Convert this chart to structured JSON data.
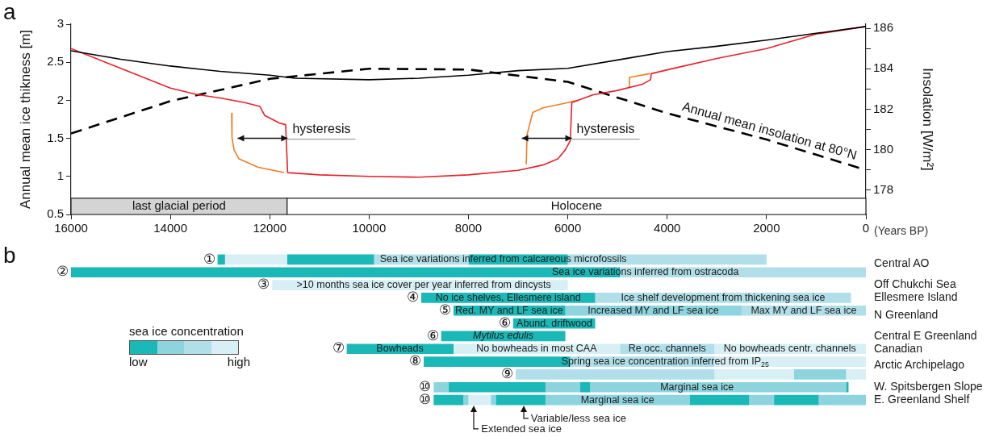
{
  "chart_data": [
    {
      "type": "line",
      "title": "a",
      "xlabel": "(Years BP)",
      "ylabel": "Annual mean ice thikness [m]",
      "y2label": "Insolation [W/m²]",
      "xlim": [
        16000,
        0
      ],
      "xticks": [
        16000,
        14000,
        12000,
        10000,
        8000,
        6000,
        4000,
        2000,
        0
      ],
      "ylim": [
        0.5,
        3
      ],
      "yticks": [
        0.5,
        1,
        1.5,
        2,
        2.5,
        3
      ],
      "y2lim": [
        176.8,
        186.2
      ],
      "y2ticks": [
        178,
        {
          "value": 179,
          "label": null
        },
        180,
        {
          "value": 181,
          "label": null
        },
        182,
        {
          "value": 183,
          "label": null
        },
        184,
        {
          "value": 185,
          "label": null
        },
        186
      ],
      "bands": [
        {
          "axis": "x",
          "from": 16000,
          "to": 11650,
          "label": "last glacial period",
          "color": "#d4d4d4"
        },
        {
          "axis": "x",
          "from": 11650,
          "to": 0,
          "label": "Holocene",
          "color": "#ffffff"
        }
      ],
      "annotations": [
        {
          "text": "hysteresis",
          "x": 11640,
          "y": 1.5
        },
        {
          "text": "hysteresis",
          "x": 5920,
          "y": 1.5
        }
      ],
      "series": [
        {
          "color": "#000000",
          "x": [
            16000,
            15000,
            14000,
            13000,
            12000,
            11500,
            10000,
            9000,
            8000,
            7000,
            6000,
            5000,
            4000,
            3000,
            2000,
            1000,
            0
          ],
          "values": [
            2.65,
            2.54,
            2.45,
            2.38,
            2.33,
            2.29,
            2.27,
            2.29,
            2.33,
            2.39,
            2.42,
            2.53,
            2.64,
            2.71,
            2.79,
            2.88,
            2.97
          ]
        },
        {
          "color": "#e8202a",
          "x": [
            16000,
            15000,
            14000,
            13500,
            13000,
            12500,
            12200,
            12100,
            11800,
            11680,
            11640,
            11000,
            10000,
            9000,
            8000,
            7000,
            6500,
            6200,
            6050,
            5950,
            5920,
            5500,
            5000,
            4500,
            4336,
            4320,
            4000,
            3000,
            2000,
            1000,
            0
          ],
          "values": [
            2.68,
            2.42,
            2.16,
            2.08,
            2.03,
            1.97,
            1.92,
            1.8,
            1.7,
            1.68,
            1.05,
            1.02,
            1.0,
            0.99,
            1.02,
            1.08,
            1.15,
            1.23,
            1.35,
            1.47,
            1.97,
            2.07,
            2.13,
            2.21,
            2.27,
            2.35,
            2.4,
            2.55,
            2.68,
            2.87,
            2.97
          ]
        },
        {
          "color": "#ee7d22",
          "x": [
            12766,
            12760,
            12718,
            12620,
            12230,
            11710,
            9000,
            6837,
            6820,
            6707,
            6500,
            6000,
            5800,
            5000,
            4775,
            4760,
            4350
          ],
          "values": [
            1.83,
            1.51,
            1.35,
            1.23,
            1.12,
            1.05,
            null,
            1.16,
            1.55,
            1.84,
            1.9,
            1.97,
            2.0,
            null,
            2.17,
            2.3,
            2.35
          ]
        },
        {
          "name": "Annual mean insolation at 80°N",
          "color": "#000000",
          "axis": "y2",
          "line_style": "dashed",
          "x": [
            16000,
            14000,
            12000,
            10000,
            8000,
            6000,
            4000,
            2000,
            0
          ],
          "values": [
            180.8,
            182.4,
            183.5,
            184.0,
            183.96,
            183.35,
            181.8,
            180.5,
            179.0
          ]
        }
      ]
    },
    {
      "type": "bar",
      "title": "b",
      "orientation": "horizontal",
      "tick_labels": "y",
      "xlim": [
        16000,
        0
      ],
      "legend_title": "sea ice concentration",
      "categories": [
        "①",
        "②",
        "③",
        "④",
        "⑤",
        "⑥",
        "⑥",
        "⑦",
        "⑧",
        "⑨",
        "⑩",
        "⑩"
      ],
      "annotations": [
        "low",
        "high",
        "Sea ice variations inferred from calcareous microfossils",
        "Sea ice variations inferred from ostracoda",
        ">10 months sea ice cover per year inferred from dincysts",
        "No ice shelves, Ellesmere island",
        "Ice shelf development from thickening sea ice",
        "Red. MY and LF sea ice",
        "Increased MY and LF sea ice",
        "Max MY and LF sea ice",
        "Abund. driftwood",
        "Mytilus edulis",
        "Bowheads",
        "No bowheads in most CAA",
        "Re occ. channels",
        "No bowheads centr. channels",
        "Spring sea ice concentration inferred from IP$_{25}$",
        "Marginal sea ice",
        "Marginal sea ice",
        "Central AO",
        "Off Chukchi Sea",
        "Ellesmere Island",
        "N Greenland",
        "Central E Greenland",
        "Canadian",
        "Arctic Archipelago",
        "W. Spitsbergen Slope",
        "E. Greenland Shelf",
        {
          "text": "Extended sea ice",
          "x": 7890,
          "y": "⑩"
        },
        {
          "text": "Variable/less sea ice",
          "x": 6890,
          "y": "⑩"
        }
      ],
      "series": [
        {
          "base": [
            12900,
            4950,
            6000,
            5450,
            6050,
            5450,
            6050,
            8300,
            5950,
            3050,
            8400,
            8100
          ],
          "values": [
            150,
            11050,
            5950,
            3500,
            2250,
            1650,
            2500,
            2150,
            2950,
            4000,
            300,
            600
          ],
          "colors": [
            "#1bb8b8",
            "#1bb8b8",
            "#d7eff5",
            "#1bb8b8",
            "#1bb8b8",
            "#1bb8b8",
            "#1bb8b8",
            "#1bb8b8",
            "#1bb8b8",
            "#b1dfe9",
            "#8dd4df",
            "#1bb8b8"
          ]
        },
        {
          "base": [
            11650,
            0,
            null,
            300,
            2500,
            null,
            null,
            4950,
            3050,
            1450,
            6450,
            8000
          ],
          "values": [
            1250,
            4950,
            null,
            5150,
            3550,
            null,
            null,
            3350,
            2900,
            1600,
            1950,
            100
          ],
          "colors": [
            "#d7eff5",
            "#b1dfe9",
            null,
            "#b1dfe9",
            "#8dd4df",
            null,
            null,
            "#d7eff5",
            "#b1dfe9",
            "#d7eff5",
            "#1bb8b8",
            "#8dd4df"
          ]
        },
        {
          "base": [
            9900,
            null,
            null,
            null,
            0,
            null,
            null,
            3050,
            0,
            400,
            5750,
            7550
          ],
          "values": [
            1750,
            null,
            null,
            null,
            2500,
            null,
            null,
            1900,
            3050,
            1050,
            700,
            450
          ],
          "colors": [
            "#1bb8b8",
            null,
            null,
            null,
            "#b1dfe9",
            null,
            null,
            "#b1dfe9",
            "#d7eff5",
            "#8dd4df",
            "#8dd4df",
            "#d7eff5"
          ]
        },
        {
          "base": [
            8000,
            null,
            null,
            null,
            null,
            null,
            null,
            0,
            null,
            0,
            5550,
            7450
          ],
          "values": [
            1900,
            null,
            null,
            null,
            null,
            null,
            null,
            3050,
            null,
            400,
            200,
            100
          ],
          "colors": [
            "#b1dfe9",
            null,
            null,
            null,
            null,
            null,
            null,
            "#d7eff5",
            null,
            "#d7eff5",
            "#1bb8b8",
            "#8dd4df"
          ]
        },
        {
          "base": [
            6000,
            null,
            null,
            null,
            null,
            null,
            null,
            null,
            null,
            null,
            400,
            6450
          ],
          "values": [
            2000,
            null,
            null,
            null,
            null,
            null,
            null,
            null,
            null,
            null,
            5150,
            1000
          ],
          "colors": [
            "#1bb8b8",
            null,
            null,
            null,
            null,
            null,
            null,
            null,
            null,
            null,
            "#8dd4df",
            "#1bb8b8"
          ]
        },
        {
          "base": [
            2000,
            null,
            null,
            null,
            null,
            null,
            null,
            null,
            null,
            null,
            350,
            3550
          ],
          "values": [
            4000,
            null,
            null,
            null,
            null,
            null,
            null,
            null,
            null,
            null,
            50,
            2900
          ],
          "colors": [
            "#b1dfe9",
            null,
            null,
            null,
            null,
            null,
            null,
            null,
            null,
            null,
            "#1bb8b8",
            "#8dd4df"
          ]
        },
        {
          "base": [
            null,
            null,
            null,
            null,
            null,
            null,
            null,
            null,
            null,
            null,
            null,
            2350
          ],
          "values": [
            null,
            null,
            null,
            null,
            null,
            null,
            null,
            null,
            null,
            null,
            null,
            1200
          ],
          "colors": [
            null,
            null,
            null,
            null,
            null,
            null,
            null,
            null,
            null,
            null,
            null,
            "#1bb8b8"
          ]
        },
        {
          "base": [
            null,
            null,
            null,
            null,
            null,
            null,
            null,
            null,
            null,
            null,
            null,
            1850
          ],
          "values": [
            null,
            null,
            null,
            null,
            null,
            null,
            null,
            null,
            null,
            null,
            null,
            500
          ],
          "colors": [
            null,
            null,
            null,
            null,
            null,
            null,
            null,
            null,
            null,
            null,
            null,
            "#8dd4df"
          ]
        },
        {
          "base": [
            null,
            null,
            null,
            null,
            null,
            null,
            null,
            null,
            null,
            null,
            null,
            950
          ],
          "values": [
            null,
            null,
            null,
            null,
            null,
            null,
            null,
            null,
            null,
            null,
            null,
            900
          ],
          "colors": [
            null,
            null,
            null,
            null,
            null,
            null,
            null,
            null,
            null,
            null,
            null,
            "#1bb8b8"
          ]
        },
        {
          "base": [
            null,
            null,
            null,
            null,
            null,
            null,
            null,
            null,
            null,
            null,
            null,
            0
          ],
          "values": [
            null,
            null,
            null,
            null,
            null,
            null,
            null,
            null,
            null,
            null,
            null,
            950
          ],
          "colors": [
            null,
            null,
            null,
            null,
            null,
            null,
            null,
            null,
            null,
            null,
            null,
            "#8dd4df"
          ]
        }
      ]
    }
  ]
}
